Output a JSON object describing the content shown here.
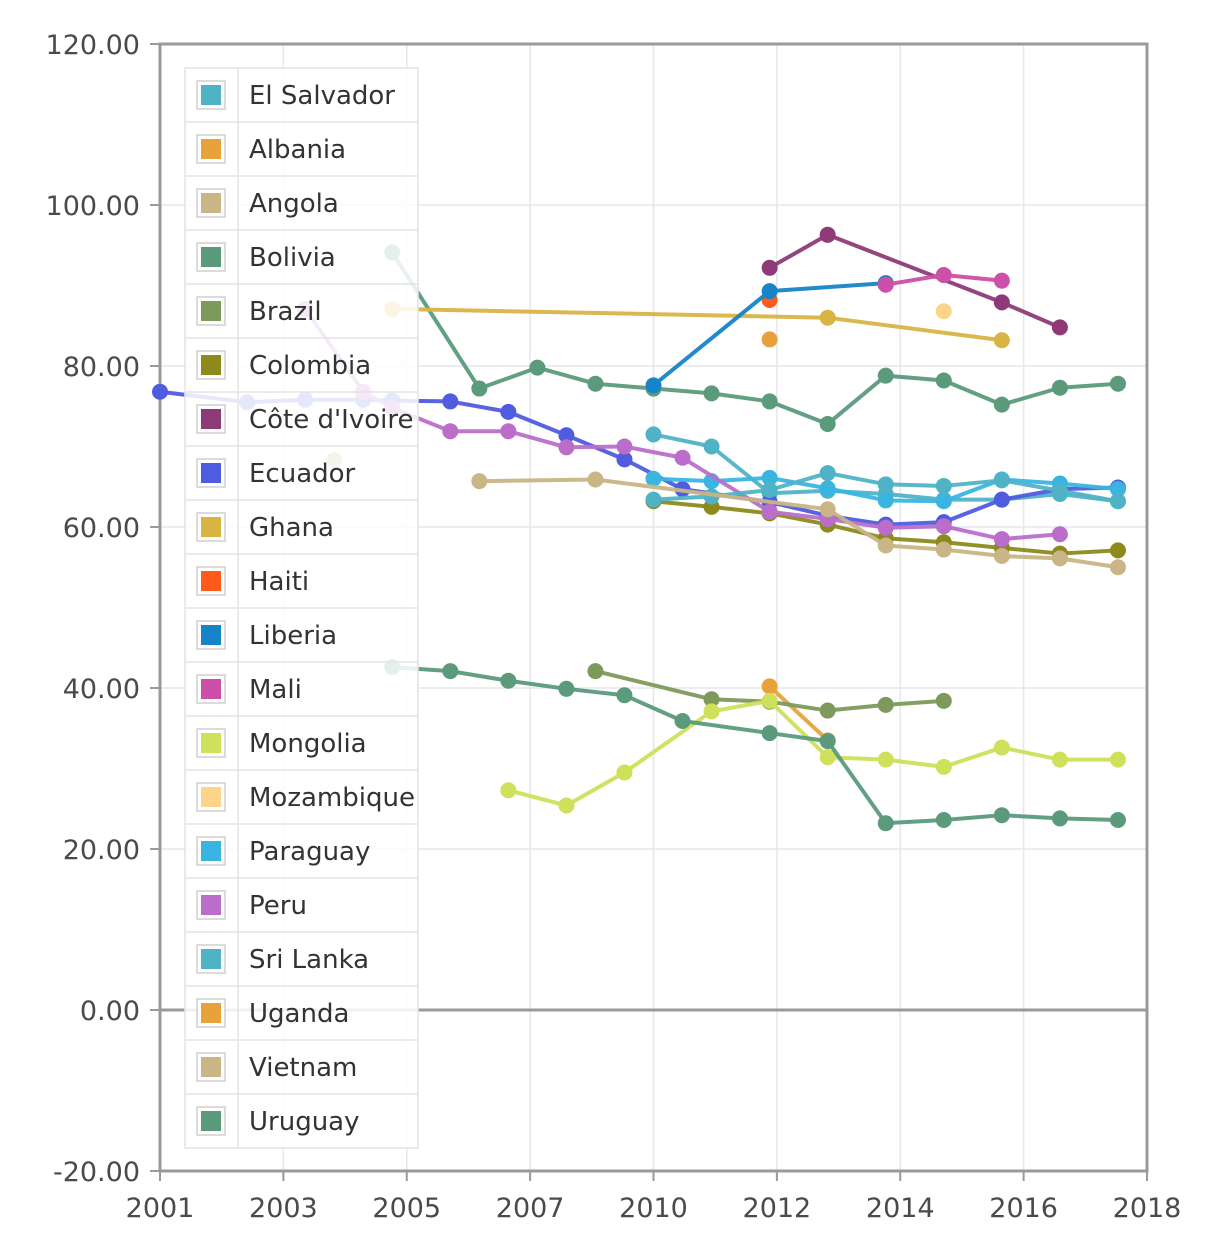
{
  "chart_data": {
    "type": "line",
    "title": "",
    "xlabel": "",
    "ylabel": "",
    "xlim": [
      2001,
      2018
    ],
    "ylim": [
      -20,
      120
    ],
    "y_ticks": [
      -20,
      0,
      20,
      40,
      60,
      80,
      100,
      120
    ],
    "y_tick_labels": [
      "-20.00",
      "0.00",
      "20.00",
      "40.00",
      "60.00",
      "80.00",
      "100.00",
      "120.00"
    ],
    "x_ticks": [
      2001,
      2003,
      2005,
      2007,
      2010,
      2012,
      2014,
      2016,
      2018
    ],
    "x_tick_labels": [
      "2001",
      "2003",
      "2005",
      "2007",
      "2010",
      "2012",
      "2014",
      "2016",
      "2018"
    ],
    "x_tick_positions": [
      2001,
      2003.125,
      2005.25,
      2007.375,
      2009.5,
      2011.625,
      2013.75,
      2015.875,
      2018
    ],
    "grid": true,
    "legend_position": "top-left",
    "series": [
      {
        "name": "El Salvador",
        "color": "#4fb3c5",
        "x": [
          2009.5,
          2010.5,
          2011.5,
          2012.5,
          2013.5,
          2014.5,
          2015.5,
          2016.5,
          2017.5
        ],
        "values": [
          71.5,
          70,
          64.2,
          64.5,
          64.1,
          63.4,
          63.4,
          64.1,
          63.2
        ]
      },
      {
        "name": "Albania",
        "color": "#e8a23c",
        "x": [
          2011.5,
          2012.5
        ],
        "values": [
          40.2,
          33.5
        ]
      },
      {
        "name": "Angola",
        "color": "#c9b585",
        "x": [
          2004
        ],
        "values": [
          68.3
        ]
      },
      {
        "name": "Bolivia",
        "color": "#5b9a7b",
        "x": [
          2005,
          2006.5,
          2007.5,
          2008.5,
          2009.5,
          2010.5,
          2011.5,
          2012.5,
          2013.5,
          2014.5,
          2015.5,
          2016.5,
          2017.5
        ],
        "values": [
          94.1,
          77.2,
          79.8,
          77.8,
          77.2,
          76.6,
          75.6,
          72.8,
          78.8,
          78.2,
          75.2,
          77.3,
          77.8
        ]
      },
      {
        "name": "Brazil",
        "color": "#7d9a5c",
        "x": [
          2008.5,
          2010.5,
          2011.5,
          2012.5,
          2013.5,
          2014.5
        ],
        "values": [
          42.1,
          38.6,
          38.3,
          37.2,
          37.9,
          38.4
        ]
      },
      {
        "name": "Colombia",
        "color": "#8c8a1c",
        "x": [
          2009.5,
          2010.5,
          2011.5,
          2012.5,
          2013.5,
          2014.5,
          2015.5,
          2016.5,
          2017.5
        ],
        "values": [
          63.2,
          62.5,
          61.7,
          60.3,
          58.6,
          58.1,
          57.4,
          56.7,
          57.1
        ]
      },
      {
        "name": "Côte d'Ivoire",
        "color": "#8e3a78",
        "x": [
          2011.5,
          2012.5,
          2015.5,
          2016.5
        ],
        "values": [
          92.2,
          96.3,
          87.9,
          84.8
        ]
      },
      {
        "name": "Ecuador",
        "color": "#4f5ce0",
        "x": [
          2001,
          2002.5,
          2003.5,
          2004.5,
          2005,
          2006,
          2007,
          2008,
          2009,
          2010,
          2011.5,
          2012.5,
          2013.5,
          2014.5,
          2015.5,
          2016.5,
          2017.5
        ],
        "values": [
          76.8,
          75.5,
          75.8,
          75.8,
          75.7,
          75.6,
          74.3,
          71.4,
          68.4,
          64.7,
          63.1,
          61.4,
          60.3,
          60.6,
          63.4,
          64.7,
          64.9
        ]
      },
      {
        "name": "Ghana",
        "color": "#d8b443",
        "x": [
          2005,
          2012.5,
          2015.5
        ],
        "values": [
          87.1,
          86,
          83.2
        ]
      },
      {
        "name": "Haiti",
        "color": "#ff5a1a",
        "x": [
          2011.5
        ],
        "values": [
          88.2
        ]
      },
      {
        "name": "Liberia",
        "color": "#1784c7",
        "x": [
          2009.5,
          2011.5,
          2013.5
        ],
        "values": [
          77.6,
          89.3,
          90.3
        ]
      },
      {
        "name": "Mali",
        "color": "#cc4fa8",
        "x": [
          2013.5,
          2014.5,
          2015.5
        ],
        "values": [
          90.1,
          91.3,
          90.6
        ]
      },
      {
        "name": "Mongolia",
        "color": "#cfe05a",
        "x": [
          2007,
          2008,
          2009,
          2010.5,
          2011.5,
          2012.5,
          2013.5,
          2014.5,
          2015.5,
          2016.5,
          2017.5
        ],
        "values": [
          27.3,
          25.4,
          29.5,
          37.1,
          38.4,
          31.4,
          31.1,
          30.2,
          32.6,
          31.1,
          31.1
        ]
      },
      {
        "name": "Mozambique",
        "color": "#fcd58a",
        "x": [
          2014.5
        ],
        "values": [
          86.8
        ]
      },
      {
        "name": "Paraguay",
        "color": "#3ab5e2",
        "x": [
          2009.5,
          2010.5,
          2011.5,
          2012.5,
          2013.5,
          2014.5,
          2015.5,
          2016.5,
          2017.5
        ],
        "values": [
          66,
          65.7,
          66.1,
          64.8,
          63.3,
          63.2,
          65.9,
          65.4,
          64.7
        ]
      },
      {
        "name": "Peru",
        "color": "#bb6ec9",
        "x": [
          2003.5,
          2004.5,
          2005,
          2006,
          2007,
          2008,
          2009,
          2010,
          2011.5,
          2012.5,
          2013.5,
          2014.5,
          2015.5,
          2016.5
        ],
        "values": [
          87.1,
          76.8,
          74.8,
          71.9,
          71.9,
          69.9,
          70,
          68.6,
          61.9,
          61,
          59.9,
          60.1,
          58.5,
          59.1
        ]
      },
      {
        "name": "Sri Lanka",
        "color": "#4fb3c5",
        "x": [
          2009.5,
          2010.5,
          2011.5,
          2012.5,
          2013.5,
          2014.5,
          2015.5,
          2016.5,
          2017.5
        ],
        "values": [
          63.4,
          63.8,
          64.6,
          66.7,
          65.3,
          65.1,
          65.8,
          64.5,
          63.2
        ]
      },
      {
        "name": "Uganda",
        "color": "#e8a23c",
        "x": [
          2011.5
        ],
        "values": [
          83.3
        ]
      },
      {
        "name": "Vietnam",
        "color": "#c9b585",
        "x": [
          2006.5,
          2008.5,
          2012.5,
          2013.5,
          2014.5,
          2015.5,
          2016.5,
          2017.5
        ],
        "values": [
          65.7,
          65.9,
          62.2,
          57.7,
          57.2,
          56.4,
          56.1,
          55
        ]
      },
      {
        "name": "Uruguay",
        "color": "#5b9a7b",
        "x": [
          2005,
          2006,
          2007,
          2008,
          2009,
          2010,
          2011.5,
          2012.5,
          2013.5,
          2014.5,
          2015.5,
          2016.5,
          2017.5
        ],
        "values": [
          42.6,
          42.1,
          40.9,
          39.9,
          39.1,
          35.9,
          34.4,
          33.4,
          23.2,
          23.6,
          24.2,
          23.8,
          23.6
        ]
      }
    ]
  }
}
